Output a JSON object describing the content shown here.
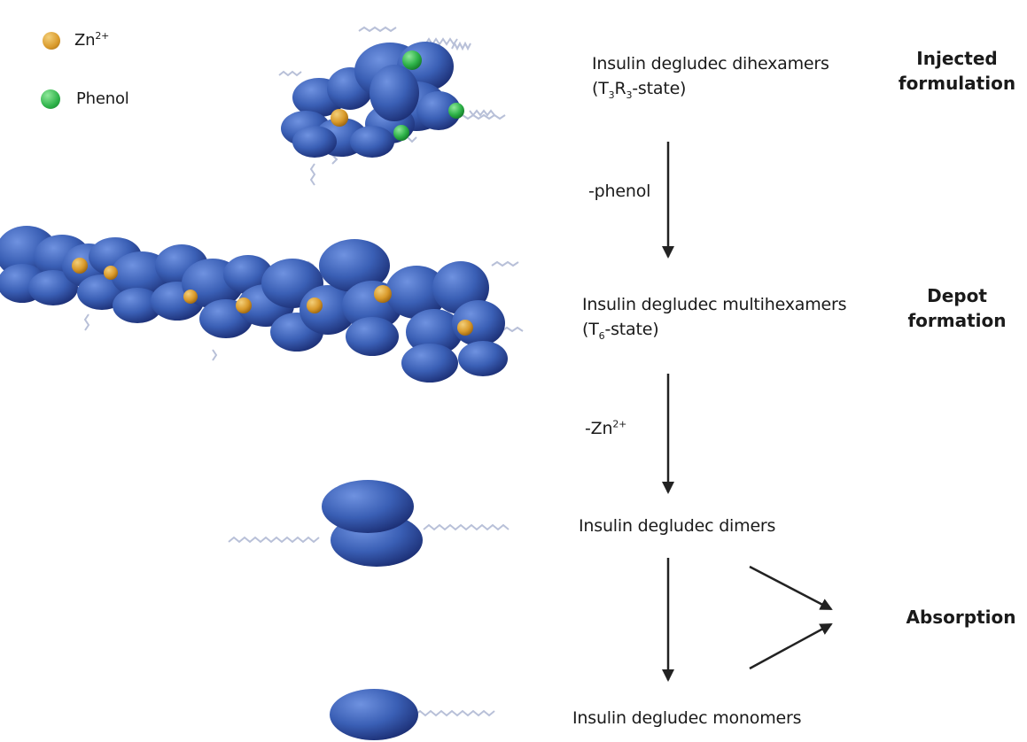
{
  "legend": {
    "zn_label": "Zn",
    "zn_sup": "2+",
    "phenol_label": "Phenol"
  },
  "steps": {
    "dihexamers": {
      "line1": "Insulin degludec dihexamers",
      "line2_pre": "(T",
      "line2_sub1": "3",
      "line2_mid": "R",
      "line2_sub2": "3",
      "line2_post": "-state)"
    },
    "multihexamers": {
      "line1": "Insulin degludec multihexamers",
      "line2_pre": "(T",
      "line2_sub": "6",
      "line2_post": "-state)"
    },
    "dimers": "Insulin degludec dimers",
    "monomers": "Insulin degludec monomers"
  },
  "transitions": {
    "phenol": "-phenol",
    "zn_label": "-Zn",
    "zn_sup": "2+"
  },
  "phases": {
    "injected_line1": "Injected",
    "injected_line2": "formulation",
    "depot_line1": "Depot",
    "depot_line2": "formation",
    "absorption": "Absorption"
  },
  "colors": {
    "protein": "#3a5fb5",
    "protein_dark": "#1f3580",
    "zinc": "#d99a2b",
    "phenol": "#2fb34a",
    "chain": "#b8c0d8",
    "arrow": "#222222"
  }
}
